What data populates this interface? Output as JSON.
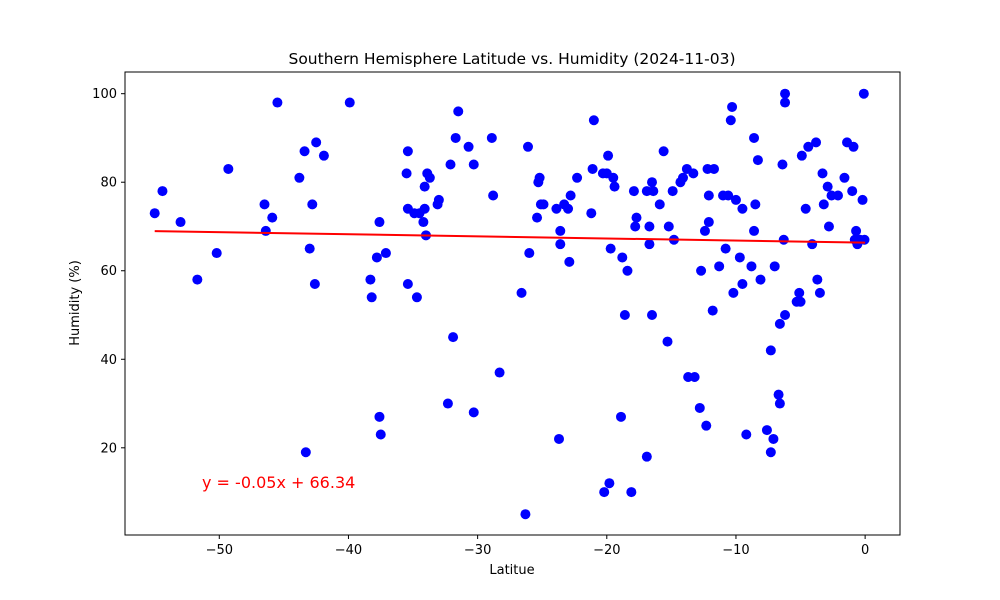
{
  "chart_data": {
    "type": "scatter",
    "title": "Southern Hemisphere Latitude vs. Humidity (2024-11-03)",
    "xlabel": "Latitue",
    "ylabel": "Humidity (%)",
    "xlim": [
      -57.3,
      2.7
    ],
    "ylim": [
      0.3,
      104.9
    ],
    "xticks": [
      -50,
      -40,
      -30,
      -20,
      -10,
      0
    ],
    "yticks": [
      20,
      40,
      60,
      80,
      100
    ],
    "grid": false,
    "legend": "none",
    "point_color": "#0000ff",
    "line_color": "#ff0000",
    "regression": {
      "equation": "y = -0.05x + 66.34",
      "slope": -0.0476,
      "intercept": 66.34,
      "x_range": [
        -55,
        0
      ]
    },
    "points": [
      [
        -55,
        73
      ],
      [
        -54.4,
        78
      ],
      [
        -53,
        71
      ],
      [
        -51.7,
        58
      ],
      [
        -50.2,
        64
      ],
      [
        -49.3,
        83
      ],
      [
        -46.5,
        75
      ],
      [
        -46.4,
        69
      ],
      [
        -45.9,
        72
      ],
      [
        -45.5,
        98
      ],
      [
        -43.8,
        81
      ],
      [
        -43.4,
        87
      ],
      [
        -43.3,
        19
      ],
      [
        -43,
        65
      ],
      [
        -42.8,
        75
      ],
      [
        -42.6,
        57
      ],
      [
        -42.5,
        89
      ],
      [
        -41.9,
        86
      ],
      [
        -39.9,
        98
      ],
      [
        -38.3,
        58
      ],
      [
        -38.2,
        54
      ],
      [
        -37.8,
        63
      ],
      [
        -37.6,
        71
      ],
      [
        -37.6,
        27
      ],
      [
        -37.5,
        23
      ],
      [
        -37.1,
        64
      ],
      [
        -35.5,
        82
      ],
      [
        -35.4,
        74
      ],
      [
        -35.4,
        87
      ],
      [
        -35.4,
        57
      ],
      [
        -34.9,
        73
      ],
      [
        -34.7,
        54
      ],
      [
        -34.5,
        73
      ],
      [
        -34.2,
        71
      ],
      [
        -34.1,
        74
      ],
      [
        -34.1,
        79
      ],
      [
        -34,
        68
      ],
      [
        -33.9,
        82
      ],
      [
        -33.7,
        81
      ],
      [
        -33.1,
        75
      ],
      [
        -33,
        76
      ],
      [
        -32.3,
        30
      ],
      [
        -32.1,
        84
      ],
      [
        -31.9,
        45
      ],
      [
        -31.7,
        90
      ],
      [
        -31.5,
        96
      ],
      [
        -30.7,
        88
      ],
      [
        -30.3,
        84
      ],
      [
        -30.3,
        28
      ],
      [
        -28.9,
        90
      ],
      [
        -28.8,
        77
      ],
      [
        -28.3,
        37
      ],
      [
        -26.6,
        55
      ],
      [
        -26.3,
        5
      ],
      [
        -26.1,
        88
      ],
      [
        -26,
        64
      ],
      [
        -25.4,
        72
      ],
      [
        -25.3,
        80
      ],
      [
        -25.2,
        81
      ],
      [
        -25.1,
        75
      ],
      [
        -24.9,
        75
      ],
      [
        -23.9,
        74
      ],
      [
        -23.7,
        22
      ],
      [
        -23.6,
        69
      ],
      [
        -23.6,
        66
      ],
      [
        -23.3,
        75
      ],
      [
        -23.0,
        74
      ],
      [
        -22.9,
        62
      ],
      [
        -22.8,
        77
      ],
      [
        -22.3,
        81
      ],
      [
        -21.2,
        73
      ],
      [
        -21.1,
        83
      ],
      [
        -21.0,
        94
      ],
      [
        -20.3,
        82
      ],
      [
        -20.2,
        10
      ],
      [
        -20.0,
        82
      ],
      [
        -19.9,
        86
      ],
      [
        -19.8,
        12
      ],
      [
        -19.7,
        65
      ],
      [
        -19.5,
        81
      ],
      [
        -19.4,
        79
      ],
      [
        -18.9,
        27
      ],
      [
        -18.8,
        63
      ],
      [
        -18.6,
        50
      ],
      [
        -18.4,
        60
      ],
      [
        -18.1,
        10
      ],
      [
        -17.9,
        78
      ],
      [
        -17.8,
        70
      ],
      [
        -17.7,
        72
      ],
      [
        -16.9,
        18
      ],
      [
        -16.9,
        78
      ],
      [
        -16.7,
        70
      ],
      [
        -16.7,
        66
      ],
      [
        -16.5,
        80
      ],
      [
        -16.5,
        50
      ],
      [
        -16.4,
        78
      ],
      [
        -15.9,
        75
      ],
      [
        -15.6,
        87
      ],
      [
        -15.3,
        44
      ],
      [
        -15.2,
        70
      ],
      [
        -14.9,
        78
      ],
      [
        -14.8,
        67
      ],
      [
        -14.3,
        80
      ],
      [
        -14.1,
        81
      ],
      [
        -13.8,
        83
      ],
      [
        -13.7,
        36
      ],
      [
        -13.3,
        82
      ],
      [
        -13.2,
        36
      ],
      [
        -12.8,
        29
      ],
      [
        -12.7,
        60
      ],
      [
        -12.4,
        69
      ],
      [
        -12.3,
        25
      ],
      [
        -12.2,
        83
      ],
      [
        -12.1,
        71
      ],
      [
        -12.1,
        77
      ],
      [
        -11.8,
        51
      ],
      [
        -11.7,
        83
      ],
      [
        -11.3,
        61
      ],
      [
        -11.0,
        77
      ],
      [
        -10.8,
        65
      ],
      [
        -10.6,
        77
      ],
      [
        -10.4,
        94
      ],
      [
        -10.3,
        97
      ],
      [
        -10.2,
        55
      ],
      [
        -10.0,
        76
      ],
      [
        -9.7,
        63
      ],
      [
        -9.5,
        57
      ],
      [
        -9.5,
        74
      ],
      [
        -9.2,
        23
      ],
      [
        -8.8,
        61
      ],
      [
        -8.6,
        69
      ],
      [
        -8.6,
        90
      ],
      [
        -8.5,
        75
      ],
      [
        -8.3,
        85
      ],
      [
        -8.1,
        58
      ],
      [
        -7.6,
        24
      ],
      [
        -7.3,
        19
      ],
      [
        -7.3,
        42
      ],
      [
        -7.1,
        22
      ],
      [
        -7.0,
        61
      ],
      [
        -6.7,
        32
      ],
      [
        -6.6,
        30
      ],
      [
        -6.6,
        48
      ],
      [
        -6.4,
        84
      ],
      [
        -6.3,
        67
      ],
      [
        -6.2,
        98
      ],
      [
        -6.2,
        100
      ],
      [
        -6.2,
        50
      ],
      [
        -5.3,
        53
      ],
      [
        -5.1,
        55
      ],
      [
        -5.0,
        53
      ],
      [
        -4.9,
        86
      ],
      [
        -4.6,
        74
      ],
      [
        -4.4,
        88
      ],
      [
        -4.1,
        66
      ],
      [
        -3.8,
        89
      ],
      [
        -3.7,
        58
      ],
      [
        -3.5,
        55
      ],
      [
        -3.3,
        82
      ],
      [
        -3.2,
        75
      ],
      [
        -2.9,
        79
      ],
      [
        -2.8,
        70
      ],
      [
        -2.6,
        77
      ],
      [
        -2.1,
        77
      ],
      [
        -1.6,
        81
      ],
      [
        -1.4,
        89
      ],
      [
        -1.0,
        78
      ],
      [
        -0.9,
        88
      ],
      [
        -0.8,
        67
      ],
      [
        -0.7,
        69
      ],
      [
        -0.6,
        66
      ],
      [
        -0.4,
        67
      ],
      [
        -0.2,
        76
      ],
      [
        -0.1,
        100
      ],
      [
        -0.05,
        67
      ]
    ]
  }
}
